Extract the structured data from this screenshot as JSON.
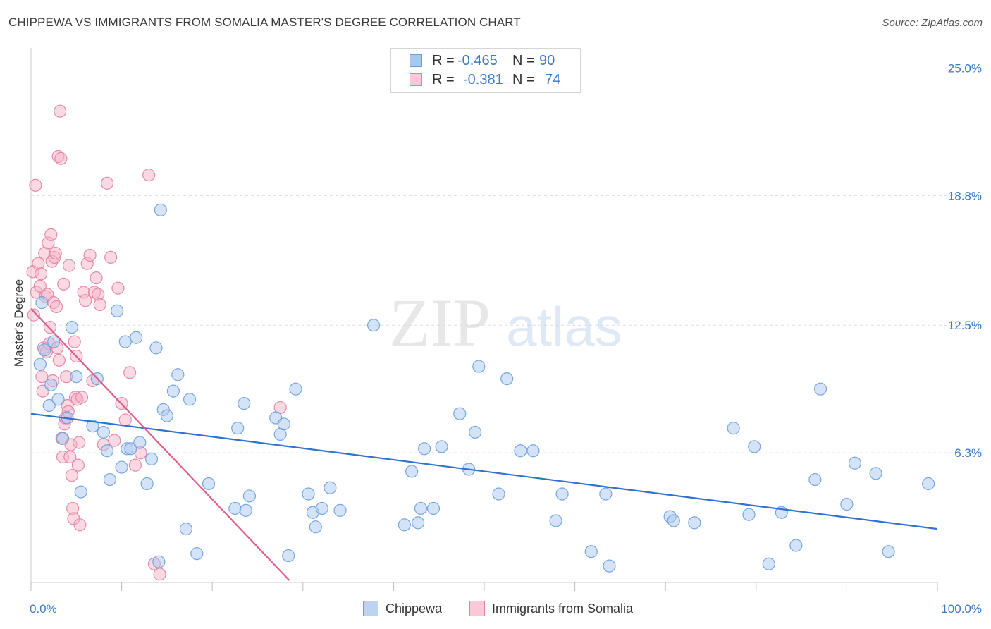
{
  "title": "CHIPPEWA VS IMMIGRANTS FROM SOMALIA MASTER'S DEGREE CORRELATION CHART",
  "source": "Source: ZipAtlas.com",
  "watermark": {
    "zip": "ZIP",
    "atlas": "atlas"
  },
  "legend": {
    "rows": [
      {
        "r_label": "R =",
        "r_value": "-0.465",
        "n_label": "N =",
        "n_value": "90"
      },
      {
        "r_label": "R =",
        "r_value": "-0.381",
        "n_label": "N =",
        "n_value": "74"
      }
    ]
  },
  "bottom_legend": [
    "Chippewa",
    "Immigrants from Somalia"
  ],
  "colors": {
    "blue_fill": "#a9c8ef",
    "blue_stroke": "#6a9fdc",
    "blue_line": "#2f72d0",
    "pink_fill": "#f6b3c8",
    "pink_stroke": "#e67fa0",
    "pink_line": "#e05d8b",
    "grid": "#dddddd",
    "tick_text": "#3a78c8"
  },
  "chart_data": {
    "type": "scatter",
    "title": "CHIPPEWA VS IMMIGRANTS FROM SOMALIA MASTER'S DEGREE CORRELATION CHART",
    "xlabel": "",
    "ylabel": "Master's Degree",
    "xlim": [
      0,
      100
    ],
    "ylim": [
      0,
      25.7
    ],
    "y_ticks": [
      6.3,
      12.5,
      18.8,
      25.0
    ],
    "y_tick_labels": [
      "6.3%",
      "12.5%",
      "18.8%",
      "25.0%"
    ],
    "x_tick_labels": [
      "0.0%",
      "100.0%"
    ],
    "series": [
      {
        "name": "Chippewa",
        "r": -0.465,
        "n": 90,
        "trend": {
          "x": [
            0,
            100
          ],
          "y": [
            8.2,
            2.6
          ]
        },
        "points": [
          [
            1,
            10.6
          ],
          [
            1.2,
            13.6
          ],
          [
            1.5,
            11.3
          ],
          [
            2,
            8.6
          ],
          [
            2.2,
            9.6
          ],
          [
            2.5,
            11.7
          ],
          [
            3,
            8.9
          ],
          [
            3.5,
            7.0
          ],
          [
            4,
            8.0
          ],
          [
            5.5,
            4.4
          ],
          [
            4.5,
            12.4
          ],
          [
            5,
            10.0
          ],
          [
            6.8,
            7.6
          ],
          [
            7.3,
            9.9
          ],
          [
            8,
            7.3
          ],
          [
            8.4,
            6.4
          ],
          [
            8.7,
            5.0
          ],
          [
            9.5,
            13.2
          ],
          [
            10,
            5.6
          ],
          [
            10.4,
            11.7
          ],
          [
            10.6,
            6.5
          ],
          [
            11,
            6.5
          ],
          [
            11.6,
            11.9
          ],
          [
            12,
            6.8
          ],
          [
            12.8,
            4.8
          ],
          [
            13.3,
            6.0
          ],
          [
            13.8,
            11.4
          ],
          [
            14.1,
            1.0
          ],
          [
            14.3,
            18.1
          ],
          [
            14.6,
            8.4
          ],
          [
            15,
            8.1
          ],
          [
            15.7,
            9.3
          ],
          [
            16.2,
            10.1
          ],
          [
            17.1,
            2.6
          ],
          [
            17.5,
            8.9
          ],
          [
            18.3,
            1.4
          ],
          [
            19.6,
            4.8
          ],
          [
            22.5,
            3.6
          ],
          [
            22.8,
            7.5
          ],
          [
            23.5,
            8.7
          ],
          [
            23.7,
            3.5
          ],
          [
            24.1,
            4.2
          ],
          [
            27,
            8.0
          ],
          [
            27.5,
            7.2
          ],
          [
            27.9,
            7.7
          ],
          [
            28.4,
            1.3
          ],
          [
            29.2,
            9.4
          ],
          [
            30.6,
            4.3
          ],
          [
            31.1,
            3.4
          ],
          [
            31.4,
            2.7
          ],
          [
            32.1,
            3.6
          ],
          [
            33,
            4.6
          ],
          [
            34.1,
            3.5
          ],
          [
            37.8,
            12.5
          ],
          [
            41.2,
            2.8
          ],
          [
            42,
            5.4
          ],
          [
            42.7,
            2.9
          ],
          [
            43,
            3.6
          ],
          [
            43.4,
            6.5
          ],
          [
            44.4,
            3.6
          ],
          [
            45.3,
            6.6
          ],
          [
            47.3,
            8.2
          ],
          [
            48.3,
            5.5
          ],
          [
            49,
            7.3
          ],
          [
            49.4,
            10.5
          ],
          [
            51.6,
            4.3
          ],
          [
            52.5,
            9.9
          ],
          [
            54,
            6.4
          ],
          [
            55.4,
            6.4
          ],
          [
            57.9,
            3.0
          ],
          [
            58.6,
            4.3
          ],
          [
            61.8,
            1.5
          ],
          [
            63.4,
            4.3
          ],
          [
            63.8,
            0.8
          ],
          [
            70.5,
            3.2
          ],
          [
            70.9,
            3.0
          ],
          [
            73.2,
            2.9
          ],
          [
            77.5,
            7.5
          ],
          [
            79.2,
            3.3
          ],
          [
            79.8,
            6.6
          ],
          [
            81.4,
            0.9
          ],
          [
            82.8,
            3.4
          ],
          [
            84.4,
            1.8
          ],
          [
            86.5,
            5.0
          ],
          [
            87.1,
            9.4
          ],
          [
            90,
            3.8
          ],
          [
            90.9,
            5.8
          ],
          [
            93.2,
            5.3
          ],
          [
            94.6,
            1.5
          ],
          [
            99,
            4.8
          ]
        ]
      },
      {
        "name": "Immigrants from Somalia",
        "r": -0.381,
        "n": 74,
        "trend": {
          "x": [
            0,
            28.5
          ],
          "y": [
            13.3,
            0.1
          ]
        },
        "points": [
          [
            0.2,
            15.1
          ],
          [
            0.3,
            13.0
          ],
          [
            0.5,
            19.3
          ],
          [
            0.6,
            14.1
          ],
          [
            0.8,
            15.5
          ],
          [
            1.0,
            14.4
          ],
          [
            1.1,
            15.0
          ],
          [
            1.2,
            10.0
          ],
          [
            1.3,
            9.3
          ],
          [
            1.4,
            11.4
          ],
          [
            1.5,
            16.0
          ],
          [
            1.6,
            13.9
          ],
          [
            1.7,
            11.2
          ],
          [
            1.8,
            14.0
          ],
          [
            1.9,
            16.5
          ],
          [
            2.0,
            11.6
          ],
          [
            2.1,
            12.4
          ],
          [
            2.2,
            16.9
          ],
          [
            2.3,
            15.6
          ],
          [
            2.4,
            9.8
          ],
          [
            2.5,
            13.6
          ],
          [
            2.6,
            15.8
          ],
          [
            2.7,
            16.0
          ],
          [
            2.8,
            13.4
          ],
          [
            2.9,
            11.4
          ],
          [
            3.0,
            20.7
          ],
          [
            3.1,
            10.8
          ],
          [
            3.2,
            22.9
          ],
          [
            3.3,
            20.6
          ],
          [
            3.4,
            7.0
          ],
          [
            3.5,
            6.1
          ],
          [
            3.6,
            14.5
          ],
          [
            3.7,
            7.7
          ],
          [
            3.8,
            8.0
          ],
          [
            3.9,
            10.0
          ],
          [
            4.0,
            8.6
          ],
          [
            4.1,
            8.3
          ],
          [
            4.2,
            15.4
          ],
          [
            4.3,
            6.1
          ],
          [
            4.4,
            6.7
          ],
          [
            4.5,
            5.2
          ],
          [
            4.6,
            3.6
          ],
          [
            4.7,
            3.1
          ],
          [
            4.8,
            11.7
          ],
          [
            4.9,
            9.0
          ],
          [
            5.0,
            11.0
          ],
          [
            5.1,
            8.9
          ],
          [
            5.2,
            5.7
          ],
          [
            5.3,
            6.8
          ],
          [
            5.4,
            2.8
          ],
          [
            5.6,
            9.0
          ],
          [
            5.8,
            14.1
          ],
          [
            6.0,
            13.7
          ],
          [
            6.2,
            15.5
          ],
          [
            6.5,
            15.9
          ],
          [
            6.8,
            9.8
          ],
          [
            7.0,
            14.1
          ],
          [
            7.2,
            14.8
          ],
          [
            7.4,
            14.0
          ],
          [
            7.6,
            13.5
          ],
          [
            8.0,
            6.7
          ],
          [
            8.4,
            19.4
          ],
          [
            8.8,
            15.8
          ],
          [
            9.2,
            6.9
          ],
          [
            9.6,
            14.3
          ],
          [
            10.0,
            8.7
          ],
          [
            10.4,
            7.9
          ],
          [
            10.9,
            10.2
          ],
          [
            11.5,
            5.7
          ],
          [
            12.1,
            6.3
          ],
          [
            13.0,
            19.8
          ],
          [
            13.6,
            0.9
          ],
          [
            14.2,
            0.4
          ],
          [
            27.5,
            8.5
          ]
        ]
      }
    ]
  }
}
